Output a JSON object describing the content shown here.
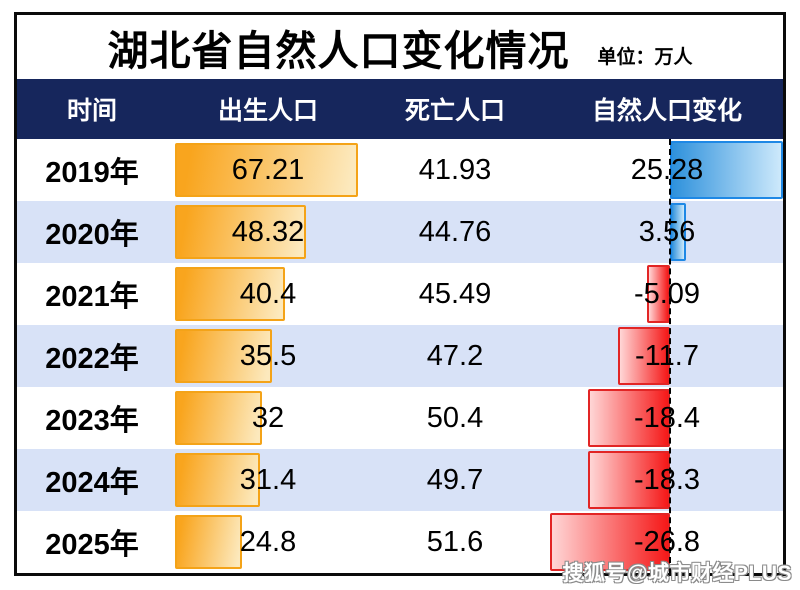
{
  "title": "湖北省自然人口变化情况",
  "unit_label": "单位：万人",
  "watermark": "搜狐号@城市财经PLUS",
  "columns": [
    "时间",
    "出生人口",
    "死亡人口",
    "自然人口变化"
  ],
  "rows": [
    {
      "year": "2019年",
      "birth": "67.21",
      "death": "41.93",
      "change": "25.28"
    },
    {
      "year": "2020年",
      "birth": "48.32",
      "death": "44.76",
      "change": "3.56"
    },
    {
      "year": "2021年",
      "birth": "40.4",
      "death": "45.49",
      "change": "-5.09"
    },
    {
      "year": "2022年",
      "birth": "35.5",
      "death": "47.2",
      "change": "-11.7"
    },
    {
      "year": "2023年",
      "birth": "32",
      "death": "50.4",
      "change": "-18.4"
    },
    {
      "year": "2024年",
      "birth": "31.4",
      "death": "49.7",
      "change": "-18.3"
    },
    {
      "year": "2025年",
      "birth": "24.8",
      "death": "51.6",
      "change": "-26.8"
    }
  ],
  "chart_data": {
    "type": "bar",
    "title": "湖北省自然人口变化情况",
    "unit": "万人",
    "categories": [
      "2019年",
      "2020年",
      "2021年",
      "2022年",
      "2023年",
      "2024年",
      "2025年"
    ],
    "series": [
      {
        "name": "出生人口",
        "values": [
          67.21,
          48.32,
          40.4,
          35.5,
          32,
          31.4,
          24.8
        ],
        "color": "#f9a51e"
      },
      {
        "name": "死亡人口",
        "values": [
          41.93,
          44.76,
          45.49,
          47.2,
          50.4,
          49.7,
          51.6
        ]
      },
      {
        "name": "自然人口变化",
        "values": [
          25.28,
          3.56,
          -5.09,
          -11.7,
          -18.4,
          -18.3,
          -26.8
        ],
        "positive_color": "#2e91dc",
        "negative_color": "#f51818"
      }
    ],
    "layout": {
      "zero_axis": "dashed-vertical",
      "rows_alternate_bg": "#d8e2f7",
      "header_bg": "#16265c"
    }
  },
  "colors": {
    "header_bg": "#16265c",
    "row_alt_bg": "#d8e2f7",
    "birth_bar": "#f9a51e",
    "positive_bar": "#2e91dc",
    "negative_bar": "#f51818"
  }
}
